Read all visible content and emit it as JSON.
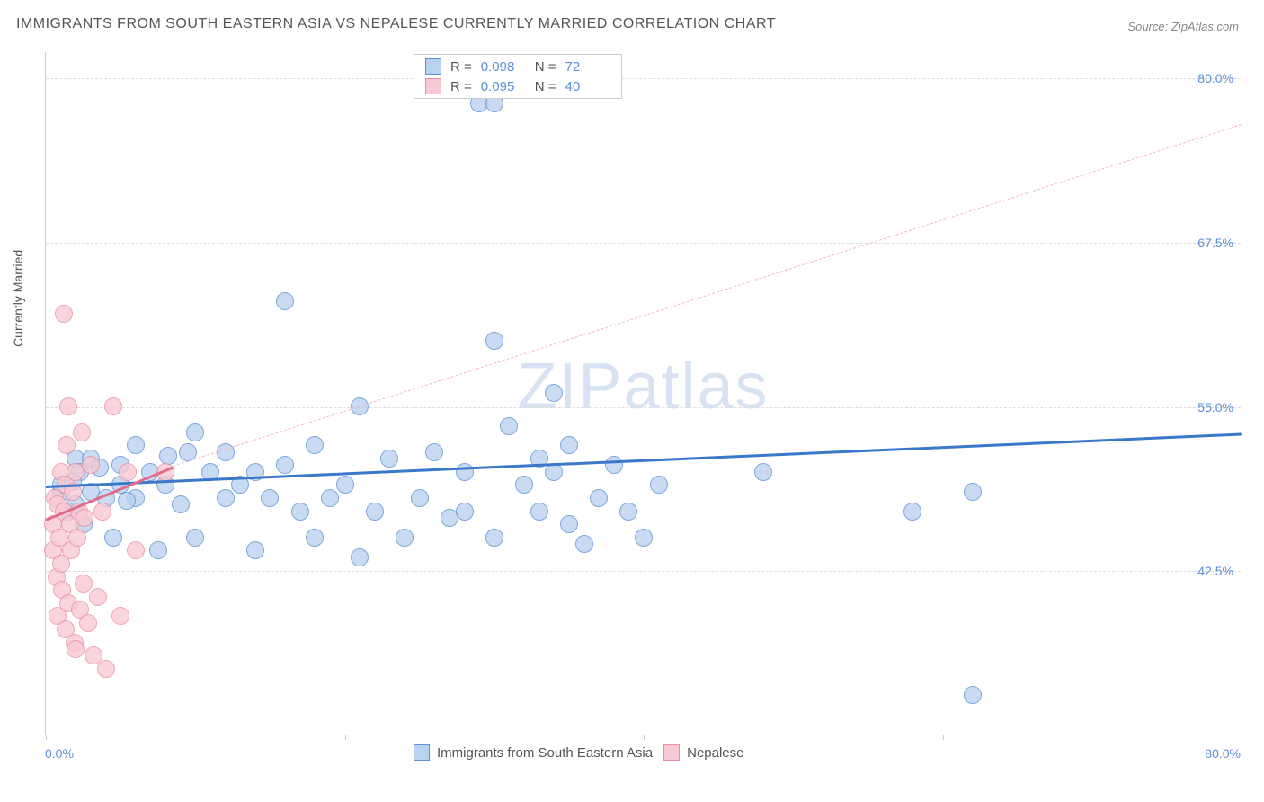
{
  "title": "IMMIGRANTS FROM SOUTH EASTERN ASIA VS NEPALESE CURRENTLY MARRIED CORRELATION CHART",
  "source": "Source: ZipAtlas.com",
  "watermark_a": "ZIP",
  "watermark_b": "atlas",
  "ylabel": "Currently Married",
  "chart": {
    "type": "scatter",
    "xlim": [
      0,
      80
    ],
    "ylim": [
      30,
      82
    ],
    "x_tick_labels": {
      "min": "0.0%",
      "max": "80.0%"
    },
    "y_ticks": [
      {
        "v": 42.5,
        "label": "42.5%"
      },
      {
        "v": 55.0,
        "label": "55.0%"
      },
      {
        "v": 67.5,
        "label": "67.5%"
      },
      {
        "v": 80.0,
        "label": "80.0%"
      }
    ],
    "x_tick_marks": [
      0,
      20,
      40,
      60,
      80
    ],
    "grid_color": "#dddddd",
    "axis_color": "#cccccc",
    "background_color": "#ffffff",
    "marker_radius": 10,
    "marker_stroke_width": 1.5,
    "marker_fill_opacity": 0.35
  },
  "series": [
    {
      "name": "Immigrants from South Eastern Asia",
      "color": "#6fa1e0",
      "fill": "#b9d2ef",
      "stroke": "#5b8fd6",
      "R": "0.098",
      "N": "72",
      "trend": {
        "x1": 0,
        "y1": 49.0,
        "x2": 80,
        "y2": 53.0,
        "color": "#3b78c9",
        "width": 3,
        "dash": "solid"
      },
      "points": [
        [
          1,
          48.5
        ],
        [
          1,
          49
        ],
        [
          1.5,
          47
        ],
        [
          2,
          51
        ],
        [
          2,
          47.5
        ],
        [
          2.3,
          50
        ],
        [
          2.5,
          46
        ],
        [
          3,
          48.5
        ],
        [
          3,
          51
        ],
        [
          4,
          48
        ],
        [
          4.5,
          45
        ],
        [
          5,
          49
        ],
        [
          5,
          50.5
        ],
        [
          6,
          52
        ],
        [
          6,
          48
        ],
        [
          7,
          50
        ],
        [
          7.5,
          44
        ],
        [
          8,
          49
        ],
        [
          9,
          47.5
        ],
        [
          9.5,
          51.5
        ],
        [
          10,
          53
        ],
        [
          10,
          45
        ],
        [
          11,
          50
        ],
        [
          12,
          51.5
        ],
        [
          12,
          48
        ],
        [
          13,
          49
        ],
        [
          14,
          44
        ],
        [
          14,
          50
        ],
        [
          15,
          48
        ],
        [
          16,
          50.5
        ],
        [
          16,
          63
        ],
        [
          17,
          47
        ],
        [
          18,
          52
        ],
        [
          18,
          45
        ],
        [
          19,
          48
        ],
        [
          20,
          49
        ],
        [
          21,
          55
        ],
        [
          21,
          43.5
        ],
        [
          22,
          47
        ],
        [
          23,
          51
        ],
        [
          24,
          45
        ],
        [
          25,
          48
        ],
        [
          26,
          51.5
        ],
        [
          27,
          46.5
        ],
        [
          28,
          50
        ],
        [
          28,
          47
        ],
        [
          29,
          78
        ],
        [
          30,
          78
        ],
        [
          30,
          60
        ],
        [
          30,
          45
        ],
        [
          31,
          53.5
        ],
        [
          32,
          49
        ],
        [
          33,
          47
        ],
        [
          33,
          51
        ],
        [
          34,
          56
        ],
        [
          34,
          50
        ],
        [
          35,
          52
        ],
        [
          35,
          46
        ],
        [
          36,
          44.5
        ],
        [
          37,
          48
        ],
        [
          38,
          50.5
        ],
        [
          39,
          47
        ],
        [
          40,
          45
        ],
        [
          41,
          49
        ],
        [
          48,
          50
        ],
        [
          58,
          47
        ],
        [
          62,
          48.5
        ],
        [
          62,
          33
        ],
        [
          1.8,
          49.2
        ],
        [
          3.6,
          50.3
        ],
        [
          5.4,
          47.8
        ],
        [
          8.2,
          51.2
        ]
      ]
    },
    {
      "name": "Nepalese",
      "color": "#f2a6b8",
      "fill": "#f8c9d4",
      "stroke": "#e88fa5",
      "R": "0.095",
      "N": "40",
      "trend": {
        "x1": 0,
        "y1": 46.5,
        "x2": 8.5,
        "y2": 50.5,
        "color": "#e26b8a",
        "width": 3,
        "dash": "solid"
      },
      "trend_ext": {
        "x1": 8.5,
        "y1": 50.5,
        "x2": 80,
        "y2": 76.5,
        "color": "#f4b6c4",
        "width": 1.5,
        "dash": "dashed"
      },
      "points": [
        [
          0.5,
          44
        ],
        [
          0.5,
          46
        ],
        [
          0.6,
          48
        ],
        [
          0.7,
          42
        ],
        [
          0.8,
          47.5
        ],
        [
          0.8,
          39
        ],
        [
          0.9,
          45
        ],
        [
          1,
          50
        ],
        [
          1,
          43
        ],
        [
          1.1,
          41
        ],
        [
          1.2,
          62
        ],
        [
          1.2,
          47
        ],
        [
          1.3,
          38
        ],
        [
          1.3,
          49
        ],
        [
          1.4,
          52
        ],
        [
          1.5,
          55
        ],
        [
          1.5,
          40
        ],
        [
          1.6,
          46
        ],
        [
          1.7,
          44
        ],
        [
          1.8,
          48.5
        ],
        [
          1.9,
          37
        ],
        [
          2,
          50
        ],
        [
          2,
          36.5
        ],
        [
          2.1,
          45
        ],
        [
          2.2,
          47
        ],
        [
          2.3,
          39.5
        ],
        [
          2.4,
          53
        ],
        [
          2.5,
          41.5
        ],
        [
          2.6,
          46.5
        ],
        [
          2.8,
          38.5
        ],
        [
          3,
          50.5
        ],
        [
          3.2,
          36
        ],
        [
          3.5,
          40.5
        ],
        [
          3.8,
          47
        ],
        [
          4,
          35
        ],
        [
          4.5,
          55
        ],
        [
          5,
          39
        ],
        [
          5.5,
          50
        ],
        [
          6,
          44
        ],
        [
          8,
          50
        ]
      ]
    }
  ],
  "legend_top": {
    "r_label": "R =",
    "n_label": "N ="
  },
  "legend_bottom": [
    {
      "label": "Immigrants from South Eastern Asia",
      "fill": "#b9d2ef",
      "stroke": "#5b8fd6"
    },
    {
      "label": "Nepalese",
      "fill": "#f8c9d4",
      "stroke": "#e88fa5"
    }
  ]
}
